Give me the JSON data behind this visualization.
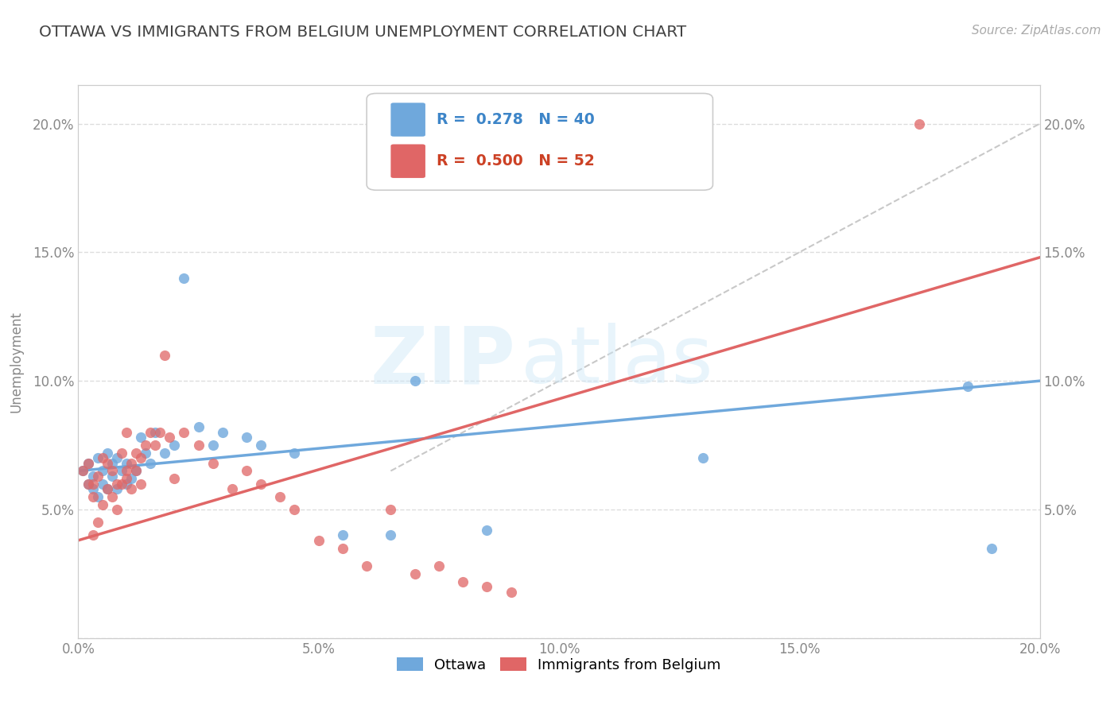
{
  "title": "OTTAWA VS IMMIGRANTS FROM BELGIUM UNEMPLOYMENT CORRELATION CHART",
  "source": "Source: ZipAtlas.com",
  "ylabel": "Unemployment",
  "xlim": [
    0.0,
    0.2
  ],
  "ylim": [
    0.0,
    0.215
  ],
  "yticks": [
    0.0,
    0.05,
    0.1,
    0.15,
    0.2
  ],
  "xticks": [
    0.0,
    0.05,
    0.1,
    0.15,
    0.2
  ],
  "ytick_labels": [
    "",
    "5.0%",
    "10.0%",
    "15.0%",
    "20.0%"
  ],
  "xtick_labels": [
    "0.0%",
    "5.0%",
    "10.0%",
    "15.0%",
    "20.0%"
  ],
  "ottawa_color": "#6fa8dc",
  "belgium_color": "#e06666",
  "legend_r_ottawa": "0.278",
  "legend_n_ottawa": "40",
  "legend_r_belgium": "0.500",
  "legend_n_belgium": "52",
  "ottawa_scatter_x": [
    0.001,
    0.002,
    0.002,
    0.003,
    0.003,
    0.004,
    0.004,
    0.005,
    0.005,
    0.006,
    0.006,
    0.007,
    0.007,
    0.008,
    0.008,
    0.009,
    0.01,
    0.01,
    0.011,
    0.012,
    0.013,
    0.014,
    0.015,
    0.016,
    0.018,
    0.02,
    0.022,
    0.025,
    0.028,
    0.03,
    0.035,
    0.038,
    0.045,
    0.055,
    0.065,
    0.07,
    0.085,
    0.13,
    0.185,
    0.19
  ],
  "ottawa_scatter_y": [
    0.065,
    0.068,
    0.06,
    0.063,
    0.058,
    0.07,
    0.055,
    0.065,
    0.06,
    0.072,
    0.058,
    0.068,
    0.063,
    0.07,
    0.058,
    0.065,
    0.06,
    0.068,
    0.062,
    0.065,
    0.078,
    0.072,
    0.068,
    0.08,
    0.072,
    0.075,
    0.14,
    0.082,
    0.075,
    0.08,
    0.078,
    0.075,
    0.072,
    0.04,
    0.04,
    0.1,
    0.042,
    0.07,
    0.098,
    0.035
  ],
  "belgium_scatter_x": [
    0.001,
    0.002,
    0.002,
    0.003,
    0.003,
    0.003,
    0.004,
    0.004,
    0.005,
    0.005,
    0.006,
    0.006,
    0.007,
    0.007,
    0.008,
    0.008,
    0.009,
    0.009,
    0.01,
    0.01,
    0.01,
    0.011,
    0.011,
    0.012,
    0.012,
    0.013,
    0.013,
    0.014,
    0.015,
    0.016,
    0.017,
    0.018,
    0.019,
    0.02,
    0.022,
    0.025,
    0.028,
    0.032,
    0.035,
    0.038,
    0.042,
    0.045,
    0.05,
    0.055,
    0.06,
    0.065,
    0.07,
    0.075,
    0.08,
    0.085,
    0.09,
    0.175
  ],
  "belgium_scatter_y": [
    0.065,
    0.06,
    0.068,
    0.06,
    0.055,
    0.04,
    0.063,
    0.045,
    0.07,
    0.052,
    0.068,
    0.058,
    0.065,
    0.055,
    0.06,
    0.05,
    0.072,
    0.06,
    0.065,
    0.08,
    0.062,
    0.068,
    0.058,
    0.072,
    0.065,
    0.06,
    0.07,
    0.075,
    0.08,
    0.075,
    0.08,
    0.11,
    0.078,
    0.062,
    0.08,
    0.075,
    0.068,
    0.058,
    0.065,
    0.06,
    0.055,
    0.05,
    0.038,
    0.035,
    0.028,
    0.05,
    0.025,
    0.028,
    0.022,
    0.02,
    0.018,
    0.2
  ],
  "title_color": "#434343",
  "axis_color": "#cccccc",
  "grid_color": "#e8e8e8",
  "background_color": "#ffffff",
  "source_color": "#aaaaaa",
  "tick_color": "#888888"
}
